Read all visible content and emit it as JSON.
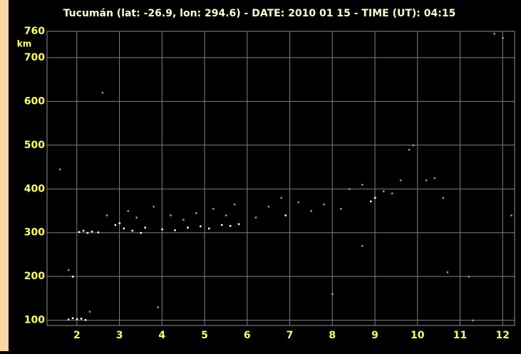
{
  "chart_data": {
    "type": "scatter",
    "title": "Tucumán (lat: -26.9, lon: 294.6) - DATE: 2010 01 15 - TIME (UT): 04:15",
    "y_label": "km",
    "xlim": [
      1.3,
      12.28
    ],
    "ylim": [
      88,
      760
    ],
    "xticks": [
      2,
      3,
      4,
      5,
      6,
      7,
      8,
      9,
      10,
      11,
      12
    ],
    "yticks": [
      100,
      200,
      300,
      400,
      500,
      600,
      700,
      760
    ],
    "grid": true,
    "series": [
      {
        "color": "#ffffff",
        "x": [
          1.8,
          1.9,
          2.0,
          2.1,
          2.2,
          2.05,
          2.15,
          2.25,
          2.35,
          2.5,
          2.9,
          3.0,
          3.1,
          3.3,
          3.5,
          3.6,
          4.0,
          4.3,
          4.6,
          4.9,
          5.1,
          5.4,
          5.6,
          5.8,
          6.9,
          8.9,
          9.0,
          1.9
        ],
        "values": [
          102,
          105,
          103,
          104,
          101,
          302,
          305,
          300,
          303,
          301,
          318,
          322,
          310,
          305,
          300,
          312,
          308,
          306,
          312,
          315,
          310,
          318,
          316,
          320,
          340,
          372,
          380,
          200
        ]
      },
      {
        "color": "#9a9a9a",
        "x": [
          1.6,
          1.8,
          2.3,
          2.6,
          2.7,
          3.2,
          3.4,
          3.8,
          4.2,
          4.5,
          4.8,
          5.2,
          5.5,
          5.7,
          6.2,
          6.5,
          6.8,
          7.2,
          7.5,
          7.8,
          8.2,
          8.4,
          8.7,
          9.2,
          9.4,
          9.6,
          9.9,
          10.2,
          10.4,
          10.6,
          3.9,
          8.0,
          8.7,
          9.8,
          10.7,
          11.2,
          11.8,
          12.0,
          12.2,
          11.3
        ],
        "values": [
          445,
          215,
          120,
          620,
          340,
          350,
          335,
          360,
          340,
          330,
          345,
          355,
          340,
          365,
          335,
          360,
          380,
          370,
          350,
          365,
          355,
          400,
          410,
          395,
          390,
          420,
          500,
          420,
          425,
          380,
          130,
          160,
          270,
          490,
          210,
          200,
          755,
          745,
          340,
          100
        ]
      }
    ]
  }
}
